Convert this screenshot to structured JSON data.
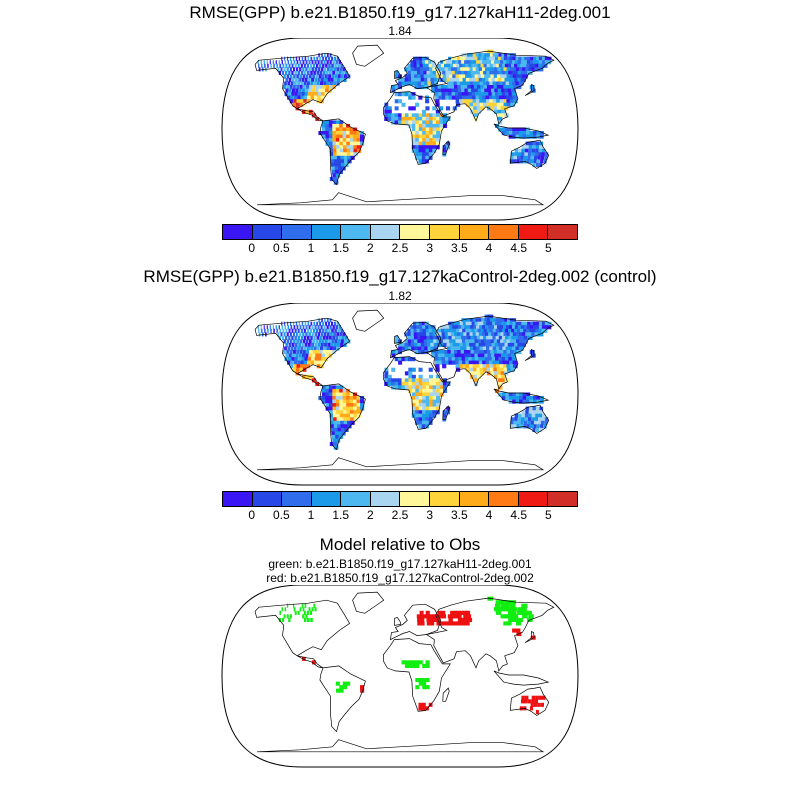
{
  "map1": {
    "title": "RMSE(GPP) b.e21.B1850.f19_g17.127kaH11-2deg.001",
    "value": "1.84"
  },
  "map2": {
    "title": "RMSE(GPP) b.e21.B1850.f19_g17.127kaControl-2deg.002 (control)",
    "value": "1.82"
  },
  "colorbar": {
    "colors": [
      "#3a16f5",
      "#2747e6",
      "#2f6ded",
      "#1b9ae9",
      "#4cb8ef",
      "#a9d5f0",
      "#fff799",
      "#ffd33a",
      "#ffab1a",
      "#ff7a14",
      "#ef1a14",
      "#d22e28"
    ],
    "labels": [
      "0",
      "0.5",
      "1",
      "1.5",
      "2",
      "2.5",
      "3",
      "3.5",
      "4",
      "4.5",
      "5"
    ]
  },
  "map3": {
    "title": "Model relative to Obs",
    "line1": "green: b.e21.B1850.f19_g17.127kaH11-2deg.001",
    "line2": "red: b.e21.B1850.f19_g17.127kaControl-2deg.002",
    "green_color": "#11ee11",
    "red_color": "#ee1111"
  }
}
